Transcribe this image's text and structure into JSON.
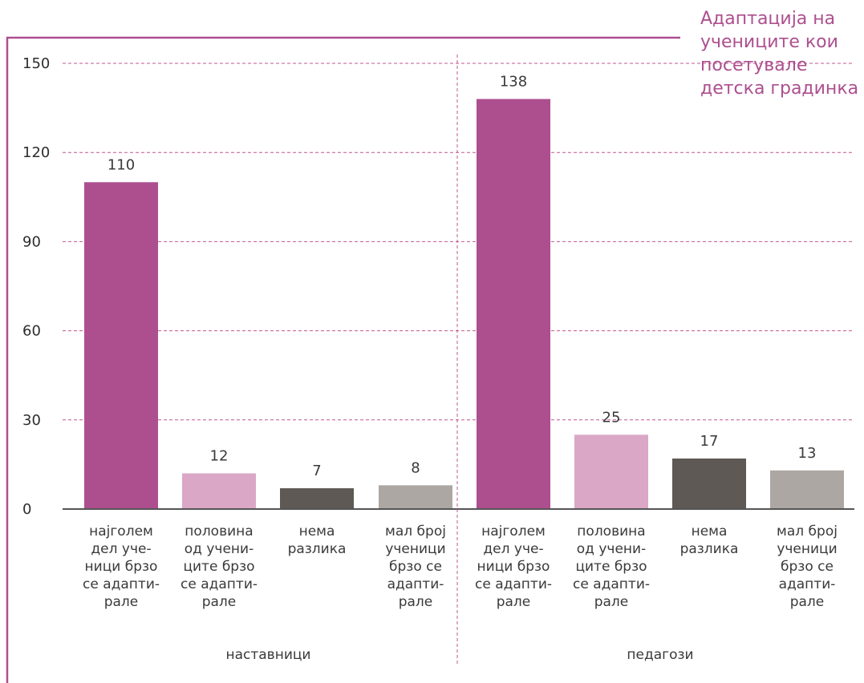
{
  "chart_data": {
    "type": "bar",
    "title": "Адаптација на учениците кои посетувале детска градинка",
    "title_lines": [
      "Адаптација на",
      "учениците кои",
      "посетувале",
      "детска градинка"
    ],
    "ylim": [
      0,
      150
    ],
    "yticks": [
      "0",
      "30",
      "60",
      "90",
      "120",
      "150"
    ],
    "grid": true,
    "groups": [
      {
        "name": "наставници",
        "categories": [
          {
            "label": "најголем дел ученици брзо се адаптирале",
            "label_lines": [
              "најголем",
              "дел уче-",
              "ници брзо",
              "се адапти-",
              "рале"
            ],
            "value": 110,
            "value_label": "110"
          },
          {
            "label": "половина од учениците брзо се адаптирале",
            "label_lines": [
              "половина",
              "од учени-",
              "ците брзо",
              "се адапти-",
              "рале"
            ],
            "value": 12,
            "value_label": "12"
          },
          {
            "label": "нема разлика",
            "label_lines": [
              "нема",
              "разлика"
            ],
            "value": 7,
            "value_label": "7"
          },
          {
            "label": "мал број ученици брзо се адаптирале",
            "label_lines": [
              "мал број",
              "ученици",
              "брзо се",
              "адапти-",
              "рале"
            ],
            "value": 8,
            "value_label": "8"
          }
        ]
      },
      {
        "name": "педагози",
        "categories": [
          {
            "label": "најголем дел ученици брзо се адаптирале",
            "label_lines": [
              "најголем",
              "дел уче-",
              "ници брзо",
              "се адапти-",
              "рале"
            ],
            "value": 138,
            "value_label": "138"
          },
          {
            "label": "половина од учениците брзо се адаптирале",
            "label_lines": [
              "половина",
              "од учени-",
              "ците брзо",
              "се адапти-",
              "рале"
            ],
            "value": 25,
            "value_label": "25"
          },
          {
            "label": "нема разлика",
            "label_lines": [
              "нема",
              "разлика"
            ],
            "value": 17,
            "value_label": "17"
          },
          {
            "label": "мал број ученици брзо се адаптирале",
            "label_lines": [
              "мал број",
              "ученици",
              "брзо се",
              "адапти-",
              "рале"
            ],
            "value": 13,
            "value_label": "13"
          }
        ]
      }
    ],
    "colors": {
      "bars": [
        "#ad4f8f",
        "#daa7c6",
        "#5e5954",
        "#aca7a3"
      ],
      "frame": "#ad4f8f",
      "title": "#ad4f8f",
      "grid": "#c0578f",
      "axis": "#555555",
      "divider": "#c0578f"
    }
  }
}
